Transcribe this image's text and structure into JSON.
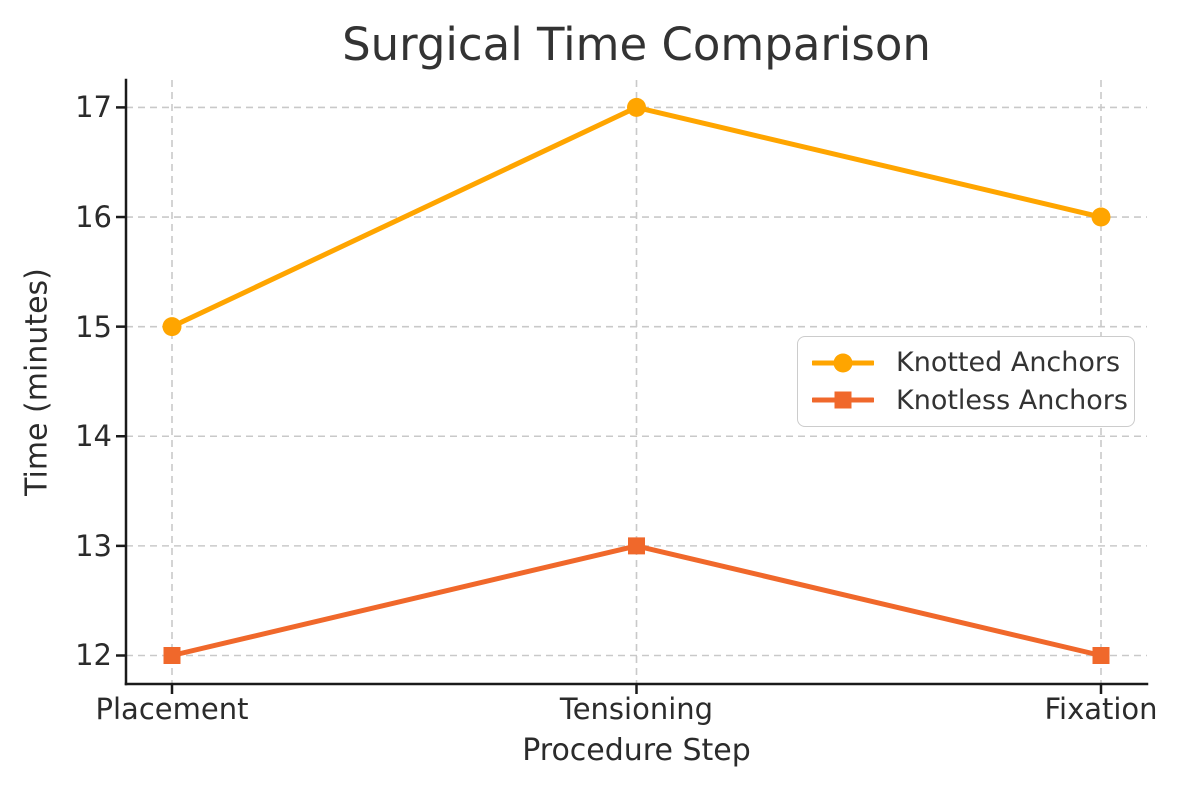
{
  "chart_data": {
    "type": "line",
    "title": "Surgical Time Comparison",
    "xlabel": "Procedure Step",
    "ylabel": "Time (minutes)",
    "categories": [
      "Placement",
      "Tensioning",
      "Fixation"
    ],
    "series": [
      {
        "name": "Knotted Anchors",
        "color": "#FFA500",
        "marker": "circle",
        "values": [
          15,
          17,
          16
        ]
      },
      {
        "name": "Knotless Anchors",
        "color": "#F0682B",
        "marker": "square",
        "values": [
          12,
          13,
          12
        ]
      }
    ],
    "yticks": [
      12,
      13,
      14,
      15,
      16,
      17
    ],
    "ylim": [
      11.74,
      17.25
    ],
    "grid": true,
    "grid_style": "dashed",
    "legend_position": "center right"
  },
  "colors": {
    "background": "#ffffff",
    "grid": "#c9c9c9",
    "spine": "#1a1a1a",
    "text": "#2b2b2b",
    "legend_border": "#cccccc"
  }
}
